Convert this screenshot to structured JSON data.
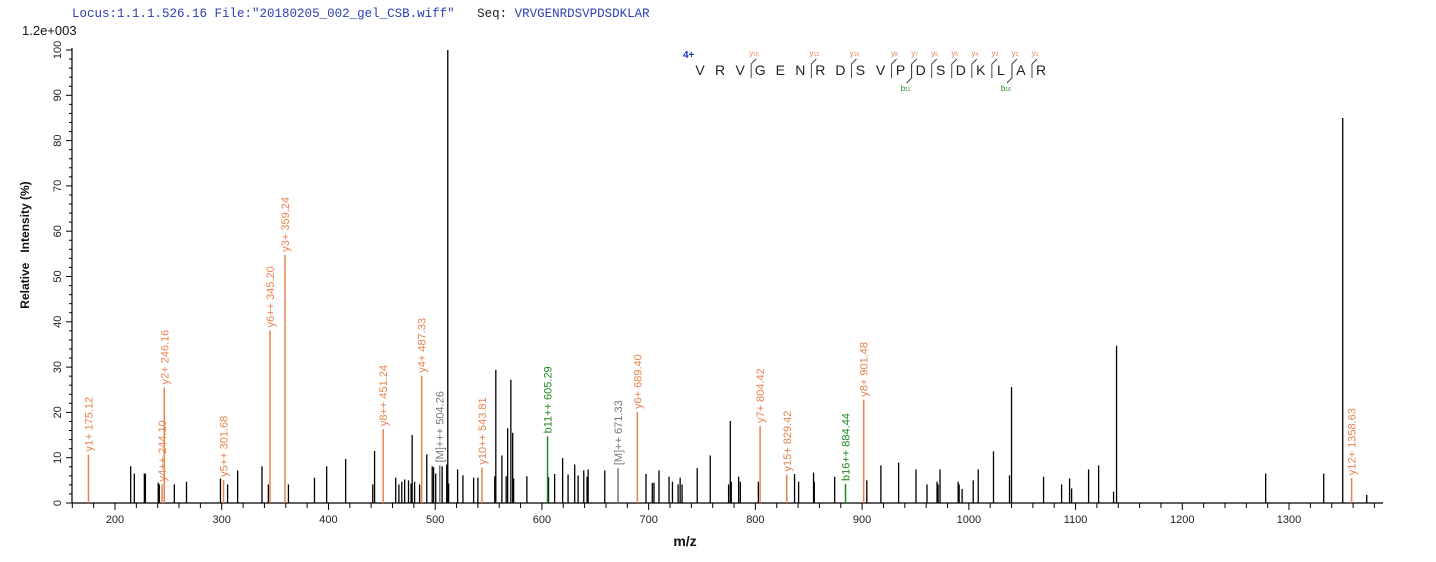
{
  "header": {
    "locus": "Locus:1.1.1.526.16",
    "file": "File:\"20180205_002_gel_CSB.wiff\"",
    "seq_label": "Seq:",
    "seq": "VRVGENRDSVPDSDKLAR"
  },
  "chart_data": {
    "type": "bar",
    "subtype": "mass-spectrum stick plot",
    "scale_label": "1.2e+003",
    "xlabel": "m/z",
    "ylabel": "Relative   Intensity (%)",
    "xlim": [
      160,
      1386
    ],
    "ylim": [
      0,
      100
    ],
    "x_ticks": [
      200,
      300,
      400,
      500,
      600,
      700,
      800,
      900,
      1000,
      1100,
      1200,
      1300
    ],
    "y_ticks": [
      0,
      10,
      20,
      30,
      40,
      50,
      60,
      70,
      80,
      90,
      100
    ],
    "grid": false,
    "colors": {
      "y_ion": "#e8834e",
      "b_ion": "#1f8a1f",
      "precursor": "#777777",
      "unassigned": "#000000",
      "charge": "#2233bb"
    },
    "peaks": [
      [
        214.7,
        8.1
      ],
      [
        218.1,
        6.5
      ],
      [
        227.5,
        6.5
      ],
      [
        228.5,
        6.5
      ],
      [
        240.5,
        4.5
      ],
      [
        241.5,
        4.1
      ],
      [
        255.6,
        4.1
      ],
      [
        267,
        4.7
      ],
      [
        298.8,
        5.4
      ],
      [
        305.5,
        4.1
      ],
      [
        314.9,
        7.2
      ],
      [
        337.7,
        8.1
      ],
      [
        343.7,
        4.1
      ],
      [
        362.5,
        4.1
      ],
      [
        386.9,
        5.6
      ],
      [
        398.3,
        8.1
      ],
      [
        416.1,
        9.7
      ],
      [
        441.5,
        4.1
      ],
      [
        443.2,
        11.5
      ],
      [
        463,
        5.6
      ],
      [
        466,
        4.1
      ],
      [
        468.7,
        4.7
      ],
      [
        471.4,
        5.2
      ],
      [
        475,
        5.0
      ],
      [
        477.4,
        4.3
      ],
      [
        478.4,
        15.0
      ],
      [
        480.7,
        4.7
      ],
      [
        485.4,
        4.1
      ],
      [
        492.1,
        10.7
      ],
      [
        497.2,
        8.1
      ],
      [
        498.5,
        7.9
      ],
      [
        500.5,
        6.5
      ],
      [
        506.5,
        8.1
      ],
      [
        510.8,
        8.5
      ],
      [
        511.8,
        100
      ],
      [
        512.6,
        4.3
      ],
      [
        521,
        7.4
      ],
      [
        526,
        6.1
      ],
      [
        536,
        5.6
      ],
      [
        540,
        5.6
      ],
      [
        555.8,
        5.9
      ],
      [
        556.8,
        29.4
      ],
      [
        562.5,
        10.5
      ],
      [
        566.5,
        5.9
      ],
      [
        567.9,
        16.5
      ],
      [
        570.9,
        27.2
      ],
      [
        572.6,
        15.5
      ],
      [
        573.5,
        5.4
      ],
      [
        585.9,
        5.9
      ],
      [
        606.2,
        5.7
      ],
      [
        611.9,
        6.4
      ],
      [
        619.4,
        9.9
      ],
      [
        624.5,
        6.3
      ],
      [
        630.7,
        8.5
      ],
      [
        633.9,
        6.1
      ],
      [
        639.2,
        7.2
      ],
      [
        642.3,
        5.8
      ],
      [
        643.3,
        7.4
      ],
      [
        658.9,
        7.2
      ],
      [
        697.5,
        6.4
      ],
      [
        703.4,
        4.4
      ],
      [
        705.0,
        4.5
      ],
      [
        709.7,
        7.2
      ],
      [
        719.1,
        5.8
      ],
      [
        722.3,
        4.7
      ],
      [
        727.6,
        4.1
      ],
      [
        729.5,
        5.6
      ],
      [
        731.3,
        4.1
      ],
      [
        745.5,
        7.7
      ],
      [
        757.7,
        10.5
      ],
      [
        774.9,
        4.1
      ],
      [
        776.5,
        18.1
      ],
      [
        777.4,
        4.7
      ],
      [
        784.3,
        5.8
      ],
      [
        785.9,
        4.7
      ],
      [
        802.8,
        4.7
      ],
      [
        836.7,
        6.4
      ],
      [
        840.5,
        4.7
      ],
      [
        854.5,
        6.7
      ],
      [
        855.2,
        4.7
      ],
      [
        874.3,
        5.8
      ],
      [
        904.4,
        5.0
      ],
      [
        917.6,
        8.3
      ],
      [
        934.2,
        8.9
      ],
      [
        950.5,
        7.4
      ],
      [
        960.8,
        4.1
      ],
      [
        970.2,
        4.7
      ],
      [
        971.2,
        4.1
      ],
      [
        973.0,
        7.4
      ],
      [
        990.0,
        4.7
      ],
      [
        990.9,
        4.1
      ],
      [
        993.7,
        3.1
      ],
      [
        1004.1,
        5.0
      ],
      [
        1008.8,
        7.4
      ],
      [
        1023.1,
        11.4
      ],
      [
        1038.1,
        6.1
      ],
      [
        1040,
        25.6
      ],
      [
        1070,
        5.8
      ],
      [
        1086.9,
        4.1
      ],
      [
        1094.4,
        5.4
      ],
      [
        1096.3,
        3.2
      ],
      [
        1112.2,
        7.4
      ],
      [
        1121.6,
        8.3
      ],
      [
        1135.6,
        2.5
      ],
      [
        1138.4,
        34.7
      ],
      [
        1278.1,
        6.5
      ],
      [
        1332.5,
        6.5
      ],
      [
        1350.3,
        85.0
      ],
      [
        1372.8,
        1.8
      ]
    ],
    "annotated_peaks": [
      {
        "mz": 175.12,
        "intensity": 10.7,
        "label": "y1+ 175.12",
        "type": "y_ion"
      },
      {
        "mz": 244.1,
        "intensity": 4.1,
        "label": "y4++ 244.10",
        "type": "y_ion"
      },
      {
        "mz": 246.16,
        "intensity": 25.5,
        "label": "y2+ 246.16",
        "type": "y_ion"
      },
      {
        "mz": 301.68,
        "intensity": 5.1,
        "label": "y5++ 301.68",
        "type": "y_ion"
      },
      {
        "mz": 345.2,
        "intensity": 38.1,
        "label": "y6++ 345.20",
        "type": "y_ion"
      },
      {
        "mz": 359.24,
        "intensity": 54.8,
        "label": "y3+ 359.24",
        "type": "y_ion"
      },
      {
        "mz": 451.24,
        "intensity": 16.3,
        "label": "y8++ 451.24",
        "type": "y_ion"
      },
      {
        "mz": 487.33,
        "intensity": 28.1,
        "label": "y4+ 487.33",
        "type": "y_ion"
      },
      {
        "mz": 504.26,
        "intensity": 8.3,
        "label": "[M]+++ 504.26",
        "type": "precursor"
      },
      {
        "mz": 543.81,
        "intensity": 7.8,
        "label": "y10++ 543.81",
        "type": "y_ion"
      },
      {
        "mz": 605.29,
        "intensity": 14.7,
        "label": "b11++ 605.29",
        "type": "b_ion"
      },
      {
        "mz": 671.33,
        "intensity": 7.7,
        "label": "[M]++ 671.33",
        "type": "precursor"
      },
      {
        "mz": 689.4,
        "intensity": 20.1,
        "label": "y6+ 689.40",
        "type": "y_ion"
      },
      {
        "mz": 804.42,
        "intensity": 17.0,
        "label": "y7+ 804.42",
        "type": "y_ion"
      },
      {
        "mz": 829.42,
        "intensity": 6.3,
        "label": "y15+ 829.42",
        "type": "y_ion"
      },
      {
        "mz": 884.44,
        "intensity": 4.2,
        "label": "b16++ 884.44",
        "type": "b_ion"
      },
      {
        "mz": 901.48,
        "intensity": 22.8,
        "label": "y8+ 901.48",
        "type": "y_ion"
      },
      {
        "mz": 1358.63,
        "intensity": 5.5,
        "label": "y12+ 1358.63",
        "type": "y_ion"
      }
    ],
    "fragment_map": {
      "charge": "4+",
      "residues": [
        "V",
        "R",
        "V",
        "G",
        "E",
        "N",
        "R",
        "D",
        "S",
        "V",
        "P",
        "D",
        "S",
        "D",
        "K",
        "L",
        "A",
        "R"
      ],
      "y_ions": [
        {
          "before_index": 3,
          "label": "y",
          "num": "15"
        },
        {
          "before_index": 6,
          "label": "y",
          "num": "12"
        },
        {
          "before_index": 8,
          "label": "y",
          "num": "10"
        },
        {
          "before_index": 10,
          "label": "y",
          "num": "8"
        },
        {
          "before_index": 11,
          "label": "y",
          "num": "7"
        },
        {
          "before_index": 12,
          "label": "y",
          "num": "6"
        },
        {
          "before_index": 13,
          "label": "y",
          "num": "5"
        },
        {
          "before_index": 14,
          "label": "y",
          "num": "4"
        },
        {
          "before_index": 15,
          "label": "y",
          "num": "3"
        },
        {
          "before_index": 16,
          "label": "y",
          "num": "2"
        },
        {
          "before_index": 17,
          "label": "y",
          "num": "1"
        }
      ],
      "b_ions": [
        {
          "before_index": 11,
          "label": "b",
          "num": "11"
        },
        {
          "before_index": 16,
          "label": "b",
          "num": "16"
        }
      ]
    }
  }
}
